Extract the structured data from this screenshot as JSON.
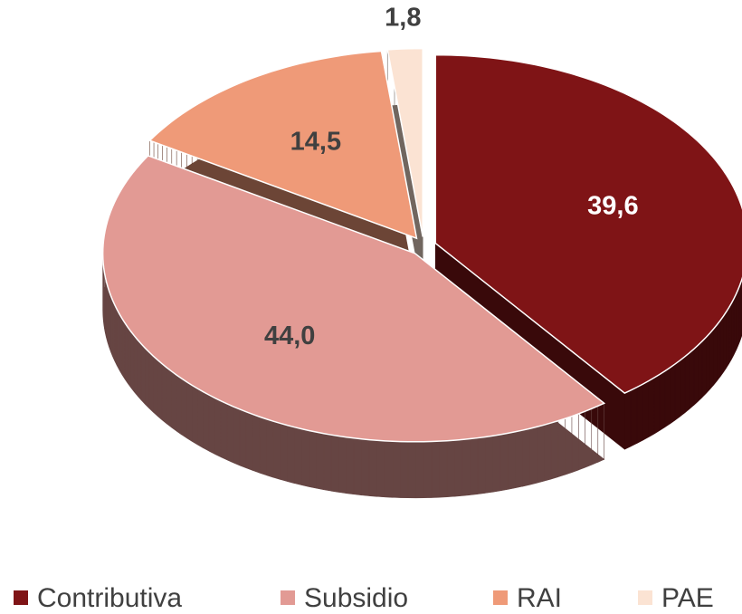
{
  "chart_data": {
    "type": "pie",
    "categories": [
      "Contributiva",
      "Subsidio",
      "RAI",
      "PAE"
    ],
    "values": [
      39.6,
      44.0,
      14.5,
      1.8
    ],
    "value_labels": [
      "39,6",
      "44,0",
      "14,5",
      "1,8"
    ],
    "colors": [
      "#7f1416",
      "#e29a94",
      "#ef9a78",
      "#fbe3d3"
    ],
    "legend": "bottom"
  }
}
